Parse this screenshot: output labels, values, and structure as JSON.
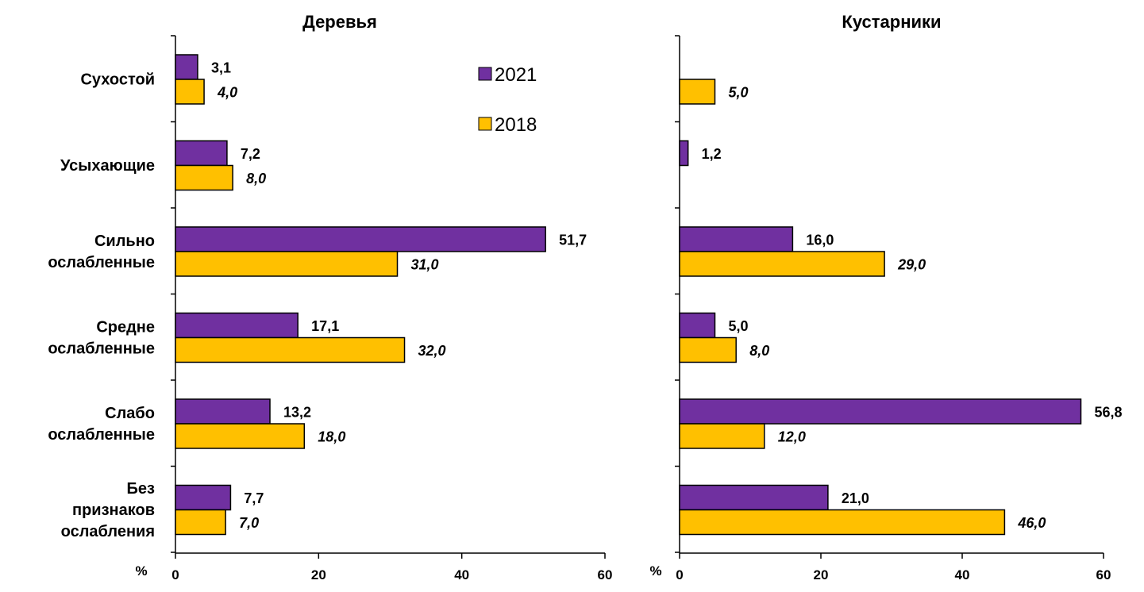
{
  "colors": {
    "series_2021": "#7030A0",
    "series_2018": "#FFC000",
    "axis": "#000000"
  },
  "legend": {
    "placement": "top-right of left panel",
    "items": [
      "2021",
      "2018"
    ]
  },
  "chart_data": [
    {
      "type": "bar",
      "orientation": "horizontal",
      "title": "Деревья",
      "xlabel": "%",
      "categories": [
        "Сухостой",
        "Усыхающие",
        "Сильно ослабленные",
        "Средне ослабленные",
        "Слабо ослабленные",
        "Без признаков ослабления"
      ],
      "category_lines": [
        [
          "Сухостой"
        ],
        [
          "Усыхающие"
        ],
        [
          "Сильно",
          "ослабленные"
        ],
        [
          "Средне",
          "ослабленные"
        ],
        [
          "Слабо",
          "ослабленные"
        ],
        [
          "Без",
          "признаков",
          "ослабления"
        ]
      ],
      "series": [
        {
          "name": "2021",
          "values": [
            3.1,
            7.2,
            51.7,
            17.1,
            13.2,
            7.7
          ],
          "labels": [
            "3,1",
            "7,2",
            "51,7",
            "17,1",
            "13,2",
            "7,7"
          ]
        },
        {
          "name": "2018",
          "values": [
            4.0,
            8.0,
            31.0,
            32.0,
            18.0,
            7.0
          ],
          "labels": [
            "4,0",
            "8,0",
            "31,0",
            "32,0",
            "18,0",
            "7,0"
          ]
        }
      ],
      "xlim": [
        0,
        60
      ],
      "xticks": [
        "0",
        "20",
        "40",
        "60"
      ],
      "grid": false
    },
    {
      "type": "bar",
      "orientation": "horizontal",
      "title": "Кустарники",
      "xlabel": "%",
      "categories": [
        "Сухостой",
        "Усыхающие",
        "Сильно ослабленные",
        "Средне ослабленные",
        "Слабо ослабленные",
        "Без признаков ослабления"
      ],
      "series": [
        {
          "name": "2021",
          "values": [
            null,
            1.2,
            16.0,
            5.0,
            56.8,
            21.0
          ],
          "labels": [
            "",
            "1,2",
            "16,0",
            "5,0",
            "56,8",
            "21,0"
          ]
        },
        {
          "name": "2018",
          "values": [
            5.0,
            null,
            29.0,
            8.0,
            12.0,
            46.0
          ],
          "labels": [
            "5,0",
            "",
            "29,0",
            "8,0",
            "12,0",
            "46,0"
          ]
        }
      ],
      "xlim": [
        0,
        60
      ],
      "xticks": [
        "0",
        "20",
        "40",
        "60"
      ],
      "grid": false
    }
  ]
}
